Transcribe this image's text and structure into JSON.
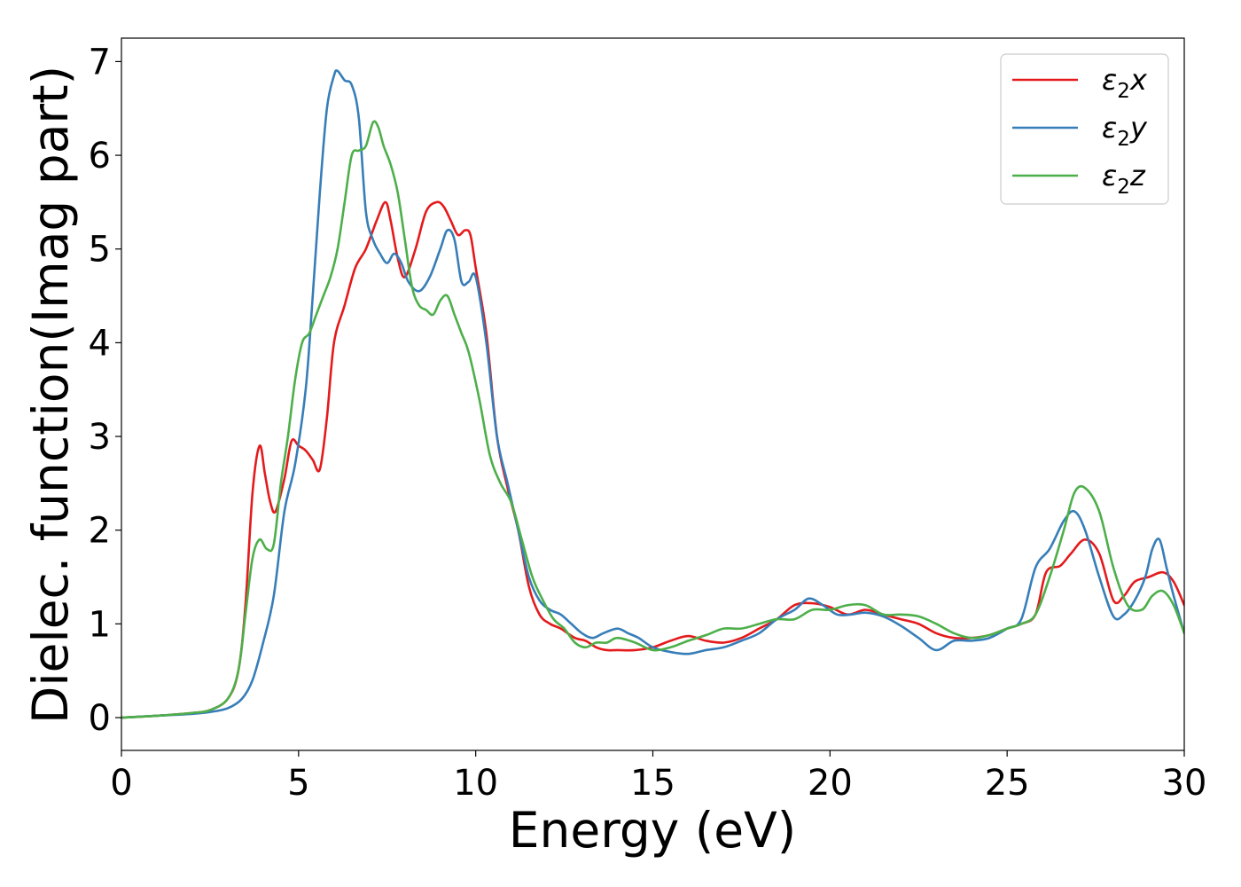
{
  "chart_data": {
    "type": "line",
    "title": "",
    "xlabel": "Energy (eV)",
    "ylabel": "Dielec. function(Imag part)",
    "xlim": [
      0,
      30
    ],
    "ylim": [
      -0.35,
      7.25
    ],
    "xticks": [
      0,
      5,
      10,
      15,
      20,
      25,
      30
    ],
    "yticks": [
      0,
      1,
      2,
      3,
      4,
      5,
      6,
      7
    ],
    "grid": false,
    "legend_position": "top-right",
    "series": [
      {
        "name": "ε₂x",
        "legend_base": "ε",
        "legend_sub": "2",
        "legend_suffix": "x",
        "color": "#e41a1c",
        "x": [
          0,
          1,
          2,
          2.5,
          3,
          3.3,
          3.5,
          3.7,
          3.9,
          4.05,
          4.2,
          4.35,
          4.6,
          4.8,
          5.0,
          5.2,
          5.4,
          5.6,
          5.8,
          6.0,
          6.3,
          6.6,
          6.9,
          7.2,
          7.45,
          7.6,
          7.8,
          8.0,
          8.3,
          8.6,
          8.9,
          9.1,
          9.3,
          9.5,
          9.7,
          9.85,
          10.0,
          10.3,
          10.6,
          10.9,
          11.2,
          11.5,
          11.8,
          12.1,
          12.4,
          12.8,
          13.1,
          13.4,
          13.7,
          14.0,
          14.5,
          15.0,
          15.5,
          16.0,
          16.5,
          17.0,
          17.5,
          18.0,
          18.5,
          19.0,
          19.5,
          20.0,
          20.5,
          21.0,
          21.5,
          22.0,
          22.5,
          23.0,
          23.5,
          24.0,
          24.5,
          25.0,
          25.4,
          25.8,
          26.1,
          26.5,
          26.8,
          27.2,
          27.6,
          28.0,
          28.3,
          28.6,
          29.0,
          29.4,
          29.7,
          30.0
        ],
        "y": [
          0.0,
          0.02,
          0.05,
          0.08,
          0.2,
          0.5,
          1.2,
          2.4,
          2.9,
          2.6,
          2.3,
          2.2,
          2.55,
          2.95,
          2.9,
          2.85,
          2.75,
          2.65,
          3.2,
          4.0,
          4.4,
          4.8,
          5.0,
          5.3,
          5.5,
          5.3,
          4.9,
          4.7,
          5.0,
          5.4,
          5.5,
          5.45,
          5.3,
          5.15,
          5.2,
          5.15,
          4.8,
          4.1,
          3.0,
          2.45,
          2.0,
          1.4,
          1.1,
          1.0,
          0.95,
          0.85,
          0.82,
          0.75,
          0.72,
          0.72,
          0.72,
          0.75,
          0.82,
          0.87,
          0.82,
          0.8,
          0.85,
          0.95,
          1.05,
          1.2,
          1.22,
          1.18,
          1.1,
          1.15,
          1.1,
          1.05,
          1.0,
          0.9,
          0.85,
          0.85,
          0.88,
          0.95,
          1.0,
          1.1,
          1.55,
          1.62,
          1.75,
          1.9,
          1.75,
          1.25,
          1.3,
          1.45,
          1.5,
          1.55,
          1.45,
          1.2
        ]
      },
      {
        "name": "ε₂y",
        "legend_base": "ε",
        "legend_sub": "2",
        "legend_suffix": "y",
        "color": "#377eb8",
        "x": [
          0,
          1,
          2,
          2.5,
          3,
          3.4,
          3.7,
          4.0,
          4.3,
          4.6,
          4.9,
          5.2,
          5.4,
          5.6,
          5.8,
          6.0,
          6.1,
          6.3,
          6.5,
          6.7,
          6.9,
          7.1,
          7.3,
          7.5,
          7.7,
          7.9,
          8.1,
          8.4,
          8.7,
          9.0,
          9.2,
          9.4,
          9.6,
          9.8,
          10.0,
          10.3,
          10.6,
          10.9,
          11.2,
          11.5,
          11.8,
          12.1,
          12.4,
          12.7,
          13.0,
          13.3,
          13.6,
          14.0,
          14.3,
          14.6,
          15.0,
          15.5,
          16.0,
          16.5,
          17.0,
          17.5,
          18.0,
          18.5,
          19.0,
          19.4,
          19.8,
          20.2,
          20.6,
          21.0,
          21.5,
          22.0,
          22.5,
          23.0,
          23.5,
          24.0,
          24.5,
          25.0,
          25.4,
          25.8,
          26.2,
          26.6,
          26.9,
          27.2,
          27.6,
          28.0,
          28.3,
          28.6,
          28.9,
          29.1,
          29.3,
          29.5,
          29.7,
          30.0
        ],
        "y": [
          0.0,
          0.02,
          0.04,
          0.06,
          0.1,
          0.2,
          0.4,
          0.8,
          1.3,
          2.2,
          2.7,
          3.5,
          4.5,
          5.6,
          6.5,
          6.85,
          6.9,
          6.8,
          6.75,
          6.4,
          5.4,
          5.1,
          4.95,
          4.85,
          4.95,
          4.85,
          4.65,
          4.55,
          4.7,
          5.0,
          5.2,
          5.1,
          4.65,
          4.65,
          4.7,
          4.0,
          3.0,
          2.5,
          2.0,
          1.5,
          1.25,
          1.15,
          1.1,
          1.0,
          0.9,
          0.85,
          0.9,
          0.95,
          0.9,
          0.85,
          0.75,
          0.7,
          0.68,
          0.72,
          0.75,
          0.82,
          0.9,
          1.05,
          1.15,
          1.27,
          1.2,
          1.1,
          1.1,
          1.12,
          1.08,
          0.98,
          0.85,
          0.72,
          0.82,
          0.82,
          0.85,
          0.95,
          1.05,
          1.6,
          1.8,
          2.1,
          2.2,
          2.0,
          1.5,
          1.08,
          1.1,
          1.25,
          1.5,
          1.8,
          1.9,
          1.6,
          1.3,
          0.9
        ]
      },
      {
        "name": "ε₂z",
        "legend_base": "ε",
        "legend_sub": "2",
        "legend_suffix": "z",
        "color": "#4daf4a",
        "x": [
          0,
          1,
          2,
          2.5,
          3,
          3.3,
          3.5,
          3.7,
          3.9,
          4.1,
          4.3,
          4.5,
          4.7,
          4.9,
          5.1,
          5.3,
          5.5,
          5.7,
          5.9,
          6.1,
          6.3,
          6.5,
          6.7,
          6.9,
          7.1,
          7.25,
          7.4,
          7.6,
          7.8,
          8.0,
          8.2,
          8.4,
          8.6,
          8.8,
          9.0,
          9.2,
          9.4,
          9.6,
          9.8,
          10.1,
          10.4,
          10.7,
          11.0,
          11.3,
          11.6,
          11.9,
          12.2,
          12.5,
          12.8,
          13.1,
          13.4,
          13.7,
          14.0,
          14.5,
          15.0,
          15.5,
          16.0,
          16.5,
          17.0,
          17.5,
          18.0,
          18.5,
          19.0,
          19.5,
          20.0,
          20.5,
          21.0,
          21.5,
          22.0,
          22.5,
          23.0,
          23.5,
          24.0,
          24.5,
          25.0,
          25.4,
          25.8,
          26.2,
          26.6,
          26.9,
          27.2,
          27.6,
          28.0,
          28.4,
          28.8,
          29.1,
          29.4,
          29.7,
          30.0
        ],
        "y": [
          0.0,
          0.02,
          0.05,
          0.08,
          0.2,
          0.5,
          1.1,
          1.7,
          1.9,
          1.8,
          1.85,
          2.5,
          3.0,
          3.6,
          4.0,
          4.1,
          4.3,
          4.5,
          4.7,
          5.0,
          5.5,
          6.0,
          6.05,
          6.1,
          6.35,
          6.3,
          6.1,
          5.9,
          5.6,
          5.1,
          4.6,
          4.4,
          4.35,
          4.3,
          4.45,
          4.5,
          4.3,
          4.1,
          3.9,
          3.4,
          2.8,
          2.5,
          2.3,
          1.9,
          1.5,
          1.25,
          1.05,
          0.95,
          0.8,
          0.75,
          0.8,
          0.8,
          0.85,
          0.8,
          0.72,
          0.75,
          0.82,
          0.88,
          0.95,
          0.95,
          1.0,
          1.05,
          1.05,
          1.15,
          1.15,
          1.2,
          1.2,
          1.1,
          1.1,
          1.08,
          1.0,
          0.9,
          0.85,
          0.88,
          0.95,
          1.0,
          1.1,
          1.5,
          2.0,
          2.4,
          2.45,
          2.2,
          1.6,
          1.2,
          1.15,
          1.3,
          1.35,
          1.2,
          0.9
        ]
      }
    ]
  }
}
